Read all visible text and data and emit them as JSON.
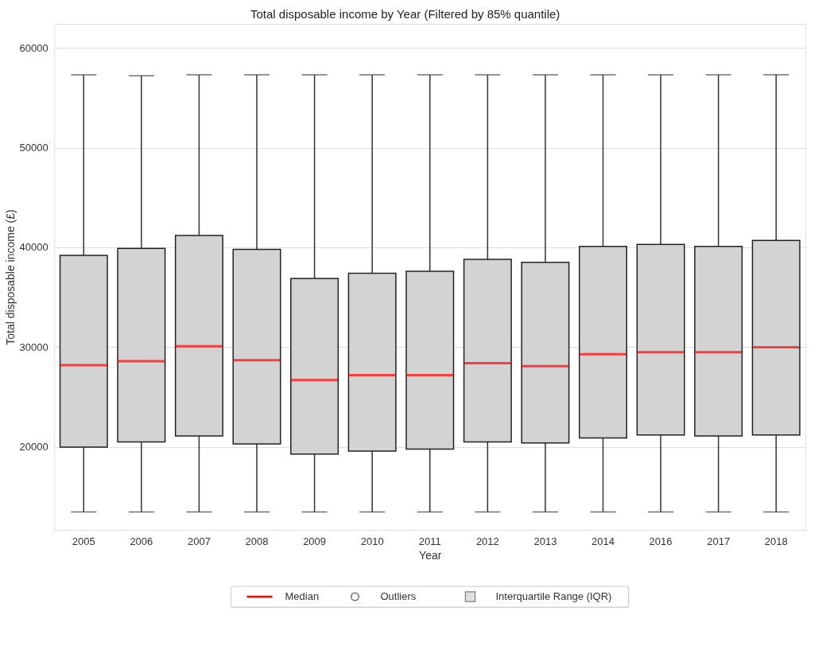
{
  "chart_data": {
    "type": "box",
    "title": "Total disposable income by Year (Filtered by 85% quantile)",
    "xlabel": "Year",
    "ylabel": "Total disposable income (£)",
    "categories": [
      "2005",
      "2006",
      "2007",
      "2008",
      "2009",
      "2010",
      "2011",
      "2012",
      "2013",
      "2014",
      "2016",
      "2017",
      "2018"
    ],
    "series": [
      {
        "name": "Interquartile Range (IQR)",
        "color": "#d3d3d3",
        "boxes": [
          {
            "low": 13500,
            "q1": 20000,
            "median": 28200,
            "q3": 39200,
            "high": 57300
          },
          {
            "low": 13500,
            "q1": 20500,
            "median": 28600,
            "q3": 39900,
            "high": 57200
          },
          {
            "low": 13500,
            "q1": 21100,
            "median": 30100,
            "q3": 41200,
            "high": 57300
          },
          {
            "low": 13500,
            "q1": 20300,
            "median": 28700,
            "q3": 39800,
            "high": 57300
          },
          {
            "low": 13500,
            "q1": 19300,
            "median": 26700,
            "q3": 36900,
            "high": 57300
          },
          {
            "low": 13500,
            "q1": 19600,
            "median": 27200,
            "q3": 37400,
            "high": 57300
          },
          {
            "low": 13500,
            "q1": 19800,
            "median": 27200,
            "q3": 37600,
            "high": 57300
          },
          {
            "low": 13500,
            "q1": 20500,
            "median": 28400,
            "q3": 38800,
            "high": 57300
          },
          {
            "low": 13500,
            "q1": 20400,
            "median": 28100,
            "q3": 38500,
            "high": 57300
          },
          {
            "low": 13500,
            "q1": 20900,
            "median": 29300,
            "q3": 40100,
            "high": 57300
          },
          {
            "low": 13500,
            "q1": 21200,
            "median": 29500,
            "q3": 40300,
            "high": 57300
          },
          {
            "low": 13500,
            "q1": 21100,
            "median": 29500,
            "q3": 40100,
            "high": 57300
          },
          {
            "low": 13500,
            "q1": 21200,
            "median": 30000,
            "q3": 40700,
            "high": 57300
          }
        ]
      },
      {
        "name": "Outliers",
        "color": "#333333",
        "values": [
          null,
          null,
          null,
          null,
          null,
          null,
          null,
          null,
          null,
          null,
          null,
          null,
          null
        ]
      }
    ],
    "annotations": [
      "Median"
    ],
    "ylim": [
      11700,
      62400
    ],
    "yticks": [
      20000,
      30000,
      40000,
      50000,
      60000
    ],
    "grid": "y",
    "legend": "bottom"
  }
}
